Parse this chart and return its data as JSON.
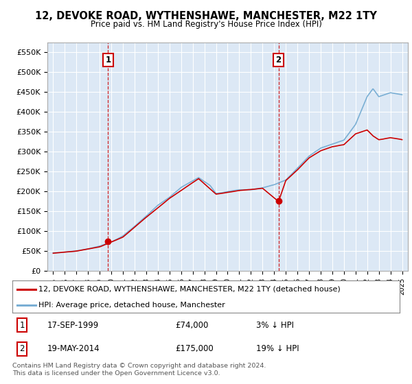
{
  "title": "12, DEVOKE ROAD, WYTHENSHAWE, MANCHESTER, M22 1TY",
  "subtitle": "Price paid vs. HM Land Registry's House Price Index (HPI)",
  "ylim": [
    0,
    575000
  ],
  "yticks": [
    0,
    50000,
    100000,
    150000,
    200000,
    250000,
    300000,
    350000,
    400000,
    450000,
    500000,
    550000
  ],
  "ytick_labels": [
    "£0",
    "£50K",
    "£100K",
    "£150K",
    "£200K",
    "£250K",
    "£300K",
    "£350K",
    "£400K",
    "£450K",
    "£500K",
    "£550K"
  ],
  "purchase1_year": 1999.72,
  "purchase1_price": 74000,
  "purchase2_year": 2014.38,
  "purchase2_price": 175000,
  "line_color_property": "#cc0000",
  "line_color_hpi": "#7aafd4",
  "marker_color_property": "#cc0000",
  "vline_color": "#cc0000",
  "plot_bg_color": "#dce8f5",
  "bg_color": "#ffffff",
  "grid_color": "#ffffff",
  "legend_label_property": "12, DEVOKE ROAD, WYTHENSHAWE, MANCHESTER, M22 1TY (detached house)",
  "legend_label_hpi": "HPI: Average price, detached house, Manchester",
  "footnote": "Contains HM Land Registry data © Crown copyright and database right 2024.\nThis data is licensed under the Open Government Licence v3.0."
}
